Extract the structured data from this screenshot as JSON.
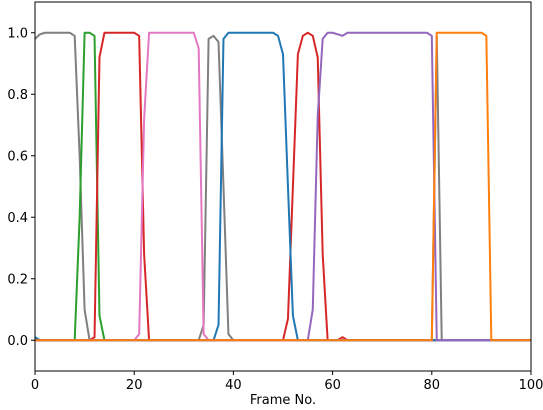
{
  "chart_data": {
    "type": "line",
    "title": "",
    "xlabel": "Frame No.",
    "ylabel": "",
    "xlim": [
      0,
      100
    ],
    "ylim": [
      -0.1,
      1.1
    ],
    "xticks": [
      0,
      20,
      40,
      60,
      80,
      100
    ],
    "yticks": [
      0.0,
      0.2,
      0.4,
      0.6,
      0.8,
      1.0
    ],
    "xtick_labels": [
      "0",
      "20",
      "40",
      "60",
      "80",
      "100"
    ],
    "ytick_labels": [
      "0.0",
      "0.2",
      "0.4",
      "0.6",
      "0.8",
      "1.0"
    ],
    "grid": false,
    "legend": "none",
    "series": [
      {
        "color": "#7f7f7f",
        "points": [
          [
            0,
            0.98
          ],
          [
            1,
            0.995
          ],
          [
            2,
            1.0
          ],
          [
            4,
            1.0
          ],
          [
            7,
            1.0
          ],
          [
            8,
            0.99
          ],
          [
            9,
            0.6
          ],
          [
            10,
            0.1
          ],
          [
            11,
            0.0
          ],
          [
            33,
            0.0
          ],
          [
            34,
            0.05
          ],
          [
            35,
            0.98
          ],
          [
            36,
            0.99
          ],
          [
            37,
            0.97
          ],
          [
            38,
            0.5
          ],
          [
            39,
            0.02
          ],
          [
            40,
            0.0
          ],
          [
            80,
            0.0
          ],
          [
            81,
            0.99
          ],
          [
            82,
            0.0
          ],
          [
            100,
            0.0
          ]
        ]
      },
      {
        "color": "#2ca02c",
        "points": [
          [
            0,
            0.0
          ],
          [
            8,
            0.0
          ],
          [
            9,
            0.4
          ],
          [
            10,
            1.0
          ],
          [
            11,
            1.0
          ],
          [
            12,
            0.99
          ],
          [
            13,
            0.08
          ],
          [
            14,
            0.0
          ],
          [
            100,
            0.0
          ]
        ]
      },
      {
        "color": "#d62728",
        "points": [
          [
            0,
            0.0
          ],
          [
            11,
            0.0
          ],
          [
            12,
            0.01
          ],
          [
            13,
            0.92
          ],
          [
            14,
            1.0
          ],
          [
            20,
            1.0
          ],
          [
            21,
            0.99
          ],
          [
            22,
            0.28
          ],
          [
            23,
            0.0
          ],
          [
            50,
            0.0
          ],
          [
            51,
            0.07
          ],
          [
            53,
            0.93
          ],
          [
            54,
            0.99
          ],
          [
            55,
            1.0
          ],
          [
            56,
            0.99
          ],
          [
            57,
            0.92
          ],
          [
            58,
            0.28
          ],
          [
            59,
            0.0
          ],
          [
            61,
            0.0
          ],
          [
            62,
            0.01
          ],
          [
            63,
            0.0
          ],
          [
            100,
            0.0
          ]
        ]
      },
      {
        "color": "#e377c2",
        "points": [
          [
            0,
            0.0
          ],
          [
            20,
            0.0
          ],
          [
            21,
            0.02
          ],
          [
            22,
            0.72
          ],
          [
            23,
            1.0
          ],
          [
            32,
            1.0
          ],
          [
            33,
            0.95
          ],
          [
            34,
            0.02
          ],
          [
            35,
            0.0
          ],
          [
            100,
            0.0
          ]
        ]
      },
      {
        "color": "#1f77b4",
        "points": [
          [
            0,
            0.01
          ],
          [
            1,
            0.0
          ],
          [
            36,
            0.0
          ],
          [
            37,
            0.05
          ],
          [
            38,
            0.98
          ],
          [
            39,
            1.0
          ],
          [
            48,
            1.0
          ],
          [
            49,
            0.99
          ],
          [
            50,
            0.93
          ],
          [
            51,
            0.5
          ],
          [
            52,
            0.08
          ],
          [
            53,
            0.0
          ],
          [
            100,
            0.0
          ]
        ]
      },
      {
        "color": "#9467bd",
        "points": [
          [
            0,
            0.0
          ],
          [
            55,
            0.0
          ],
          [
            56,
            0.1
          ],
          [
            57,
            0.73
          ],
          [
            58,
            0.98
          ],
          [
            59,
            1.0
          ],
          [
            60,
            1.0
          ],
          [
            62,
            0.99
          ],
          [
            63,
            1.0
          ],
          [
            64,
            1.0
          ],
          [
            79,
            1.0
          ],
          [
            80,
            0.99
          ],
          [
            81,
            0.0
          ],
          [
            100,
            0.0
          ]
        ]
      },
      {
        "color": "#ff7f0e",
        "points": [
          [
            0,
            0.0
          ],
          [
            80,
            0.0
          ],
          [
            81,
            1.0
          ],
          [
            90,
            1.0
          ],
          [
            91,
            0.99
          ],
          [
            92,
            0.0
          ],
          [
            100,
            0.0
          ]
        ]
      }
    ]
  }
}
